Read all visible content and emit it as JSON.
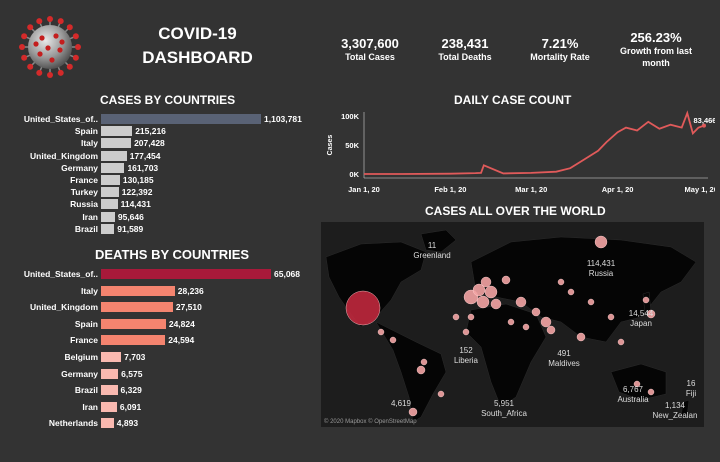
{
  "header": {
    "title_line1": "COVID-19",
    "title_line2": "DASHBOARD",
    "kpis": [
      {
        "value": "3,307,600",
        "label": "Total Cases"
      },
      {
        "value": "238,431",
        "label": "Total Deaths"
      },
      {
        "value": "7.21%",
        "label": "Mortality Rate"
      },
      {
        "value": "256.23%",
        "label": "Growth from last month"
      }
    ]
  },
  "cases_by_countries": {
    "title": "CASES BY COUNTRIES",
    "rows": [
      {
        "country": "United_States_of..",
        "value": 1103781,
        "label": "1,103,781"
      },
      {
        "country": "Spain",
        "value": 215216,
        "label": "215,216"
      },
      {
        "country": "Italy",
        "value": 207428,
        "label": "207,428"
      },
      {
        "country": "United_Kingdom",
        "value": 177454,
        "label": "177,454"
      },
      {
        "country": "Germany",
        "value": 161703,
        "label": "161,703"
      },
      {
        "country": "France",
        "value": 130185,
        "label": "130,185"
      },
      {
        "country": "Turkey",
        "value": 122392,
        "label": "122,392"
      },
      {
        "country": "Russia",
        "value": 114431,
        "label": "114,431"
      },
      {
        "country": "Iran",
        "value": 95646,
        "label": "95,646"
      },
      {
        "country": "Brazil",
        "value": 91589,
        "label": "91,589"
      }
    ],
    "colors": {
      "top": "#596275",
      "rest": "#cccccc"
    }
  },
  "deaths_by_countries": {
    "title": "DEATHS BY COUNTRIES",
    "rows": [
      {
        "country": "United_States_of..",
        "value": 65068,
        "label": "65,068"
      },
      {
        "country": "Italy",
        "value": 28236,
        "label": "28,236"
      },
      {
        "country": "United_Kingdom",
        "value": 27510,
        "label": "27,510"
      },
      {
        "country": "Spain",
        "value": 24824,
        "label": "24,824"
      },
      {
        "country": "France",
        "value": 24594,
        "label": "24,594"
      },
      {
        "country": "Belgium",
        "value": 7703,
        "label": "7,703"
      },
      {
        "country": "Germany",
        "value": 6575,
        "label": "6,575"
      },
      {
        "country": "Brazil",
        "value": 6329,
        "label": "6,329"
      },
      {
        "country": "Iran",
        "value": 6091,
        "label": "6,091"
      },
      {
        "country": "Netherlands",
        "value": 4893,
        "label": "4,893"
      }
    ],
    "colors": {
      "top": "#a8193a",
      "high": "#f4846f",
      "low": "#f9b9b0"
    }
  },
  "daily_case_count": {
    "title": "DAILY CASE COUNT",
    "ylabel": "Cases",
    "yticks": [
      "100K",
      "50K",
      "0K"
    ],
    "xticks": [
      "Jan 1, 20",
      "Feb 1, 20",
      "Mar 1, 20",
      "Apr 1, 20",
      "May 1, 20"
    ],
    "last_label": "83,466",
    "line_color": "#e05a5a"
  },
  "world_map": {
    "title": "CASES ALL OVER THE WORLD",
    "credit": "© 2020 Mapbox © OpenStreetMap",
    "labels": [
      {
        "value": "11",
        "name": "Greenland"
      },
      {
        "value": "114,431",
        "name": "Russia"
      },
      {
        "value": "14,544",
        "name": "Japan"
      },
      {
        "value": "152",
        "name": "Liberia"
      },
      {
        "value": "491",
        "name": "Maldives"
      },
      {
        "value": "6,767",
        "name": "Australia"
      },
      {
        "value": "16",
        "name": "Fiji"
      },
      {
        "value": "1,134",
        "name": "New_Zealan"
      },
      {
        "value": "5,951",
        "name": "South_Africa"
      },
      {
        "value": "4,619",
        "name": ""
      }
    ],
    "bubble_color": "#f4a4a4",
    "us_bubble_color": "#c0283d"
  },
  "chart_data": [
    {
      "type": "bar",
      "title": "CASES BY COUNTRIES",
      "categories": [
        "United_States_of..",
        "Spain",
        "Italy",
        "United_Kingdom",
        "Germany",
        "France",
        "Turkey",
        "Russia",
        "Iran",
        "Brazil"
      ],
      "values": [
        1103781,
        215216,
        207428,
        177454,
        161703,
        130185,
        122392,
        114431,
        95646,
        91589
      ]
    },
    {
      "type": "bar",
      "title": "DEATHS BY COUNTRIES",
      "categories": [
        "United_States_of..",
        "Italy",
        "United_Kingdom",
        "Spain",
        "France",
        "Belgium",
        "Germany",
        "Brazil",
        "Iran",
        "Netherlands"
      ],
      "values": [
        65068,
        28236,
        27510,
        24824,
        24594,
        7703,
        6575,
        6329,
        6091,
        4893
      ]
    },
    {
      "type": "line",
      "title": "DAILY CASE COUNT",
      "ylabel": "Cases",
      "ylim": [
        0,
        100000
      ],
      "x": [
        "2020-01-01",
        "2020-01-15",
        "2020-02-01",
        "2020-02-10",
        "2020-02-12",
        "2020-02-13",
        "2020-02-20",
        "2020-03-01",
        "2020-03-10",
        "2020-03-15",
        "2020-03-20",
        "2020-03-25",
        "2020-03-28",
        "2020-04-01",
        "2020-04-04",
        "2020-04-08",
        "2020-04-12",
        "2020-04-16",
        "2020-04-20",
        "2020-04-24",
        "2020-04-26",
        "2020-04-28",
        "2020-04-30",
        "2020-05-02"
      ],
      "y": [
        0,
        0,
        500,
        1500,
        2000,
        15000,
        1000,
        2000,
        4000,
        10000,
        25000,
        40000,
        55000,
        72000,
        80000,
        75000,
        90000,
        78000,
        85000,
        80000,
        105000,
        70000,
        80000,
        83466
      ]
    }
  ]
}
